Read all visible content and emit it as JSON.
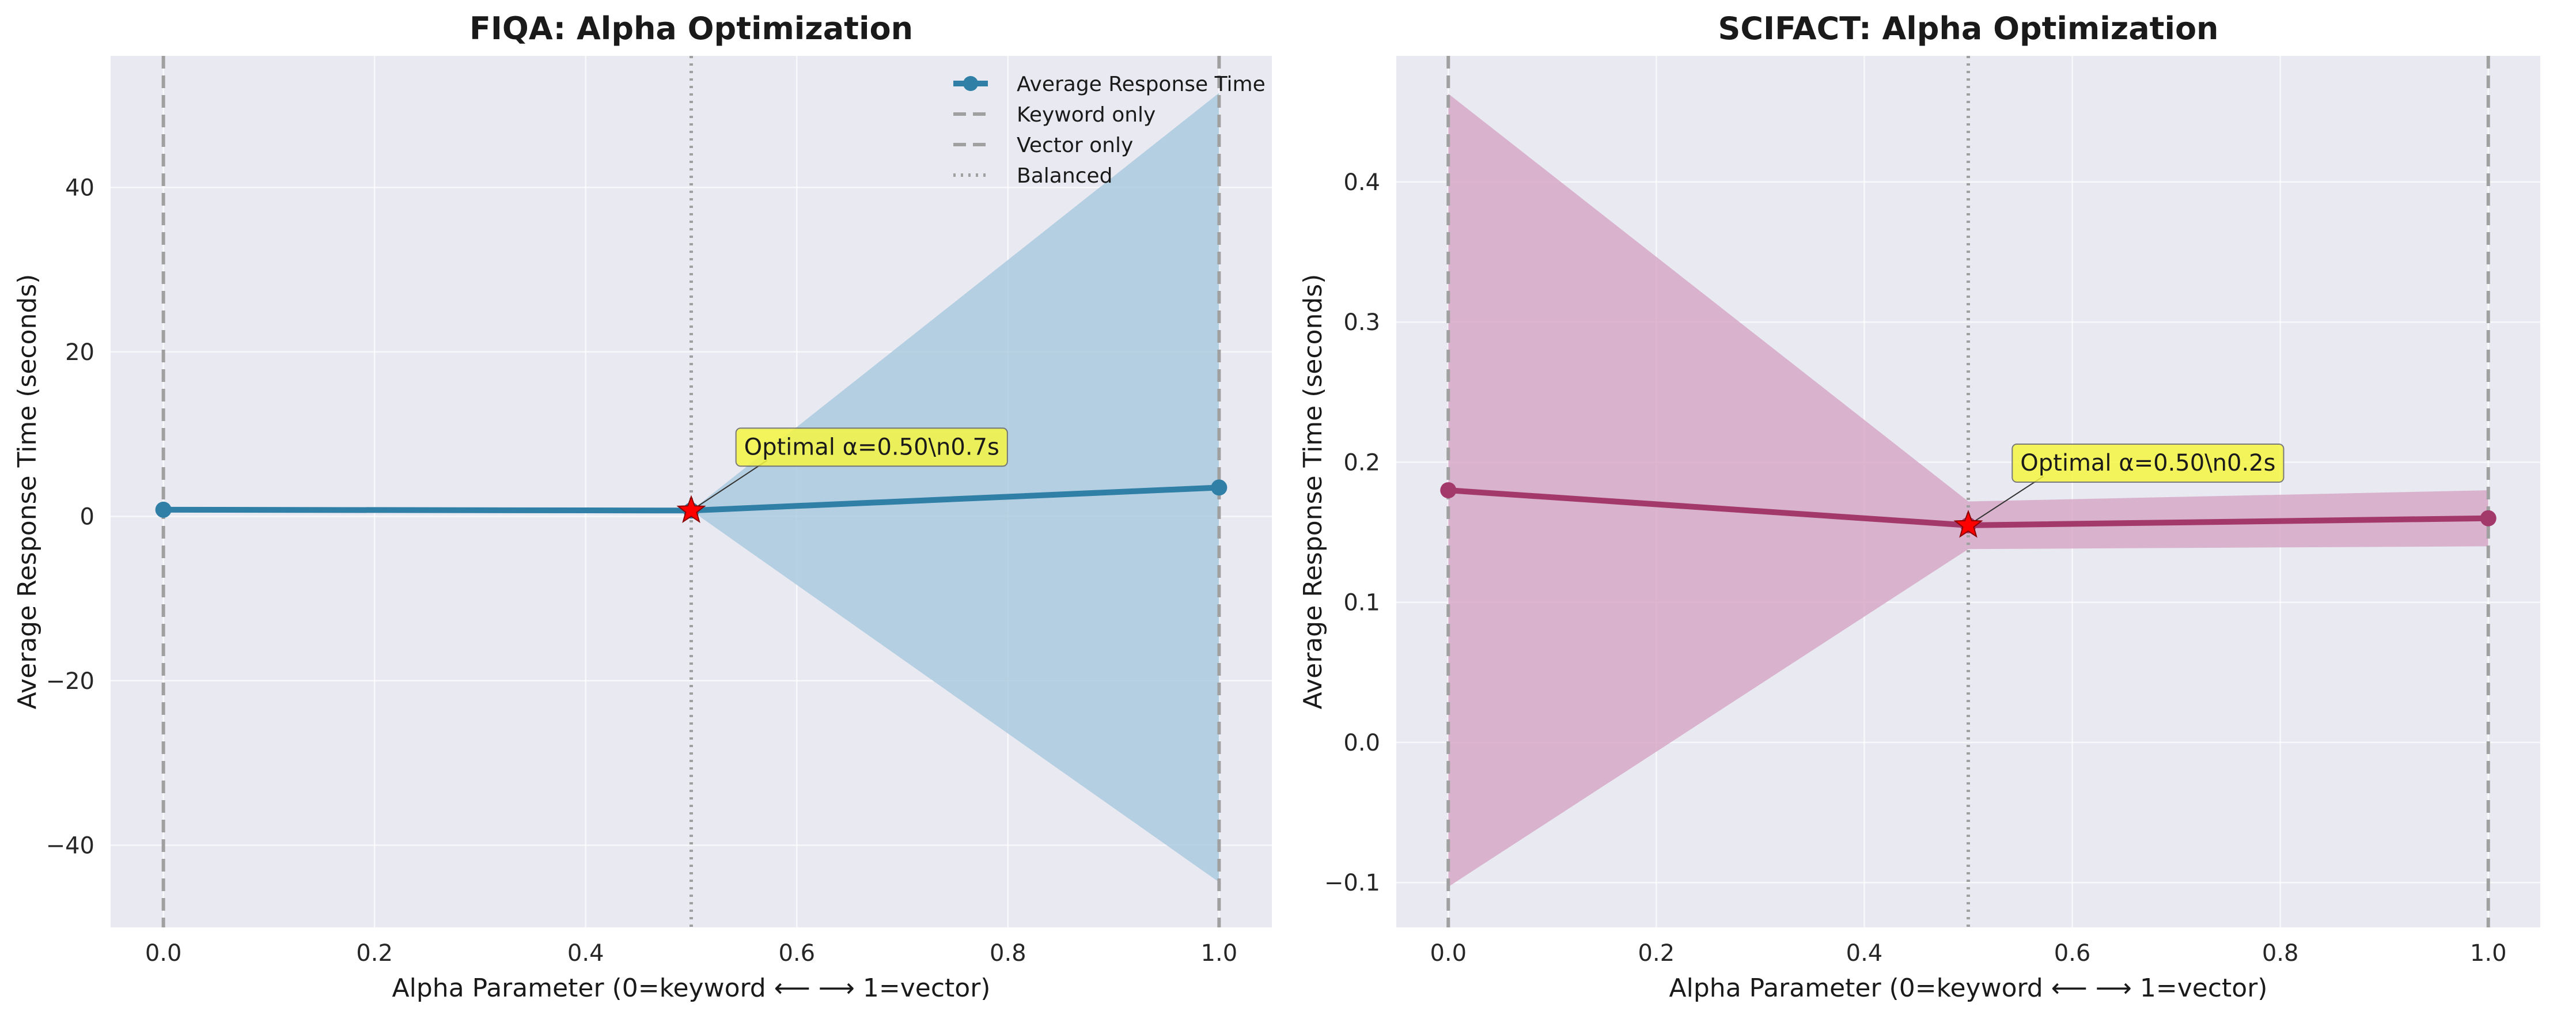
{
  "chart_data": [
    {
      "type": "line",
      "title": "FIQA: Alpha Optimization",
      "xlabel": "Alpha Parameter (0=keyword ⟵ ⟶ 1=vector)",
      "ylabel": "Average Response Time (seconds)",
      "xlim": [
        -0.05,
        1.05
      ],
      "ylim": [
        -50,
        56
      ],
      "xticks": [
        0.0,
        0.2,
        0.4,
        0.6,
        0.8,
        1.0
      ],
      "xtick_labels": [
        "0.0",
        "0.2",
        "0.4",
        "0.6",
        "0.8",
        "1.0"
      ],
      "yticks": [
        -40,
        -20,
        0,
        20,
        40
      ],
      "ytick_labels": [
        "−40",
        "−20",
        "0",
        "20",
        "40"
      ],
      "grid": true,
      "legend_position": "top-right",
      "colors": {
        "line": "#2f7fa6",
        "band": "#a7c8dd",
        "optimal_marker": "#ff0000",
        "reference_line": "#a0a0a0",
        "annotation_box": "#f5f542"
      },
      "series": [
        {
          "name": "Average Response Time",
          "x": [
            0.0,
            0.5,
            1.0
          ],
          "values": [
            0.8,
            0.7,
            3.5
          ],
          "lower": [
            0.8,
            0.7,
            -44.5
          ],
          "upper": [
            0.8,
            0.7,
            51.5
          ]
        }
      ],
      "reference_lines": [
        {
          "name": "Keyword only",
          "x": 0.0,
          "style": "dashed"
        },
        {
          "name": "Vector only",
          "x": 1.0,
          "style": "dashed"
        },
        {
          "name": "Balanced",
          "x": 0.5,
          "style": "dotted"
        }
      ],
      "optimal": {
        "x": 0.5,
        "y": 0.7
      },
      "annotation": {
        "text": "Optimal α=0.50\\n0.7s",
        "x": 0.55,
        "y": 7.5
      },
      "legend": [
        "Average Response Time",
        "Keyword only",
        "Vector only",
        "Balanced"
      ]
    },
    {
      "type": "line",
      "title": "SCIFACT: Alpha Optimization",
      "xlabel": "Alpha Parameter (0=keyword ⟵ ⟶ 1=vector)",
      "ylabel": "Average Response Time (seconds)",
      "xlim": [
        -0.05,
        1.05
      ],
      "ylim": [
        -0.132,
        0.49
      ],
      "xticks": [
        0.0,
        0.2,
        0.4,
        0.6,
        0.8,
        1.0
      ],
      "xtick_labels": [
        "0.0",
        "0.2",
        "0.4",
        "0.6",
        "0.8",
        "1.0"
      ],
      "yticks": [
        -0.1,
        0.0,
        0.1,
        0.2,
        0.3,
        0.4
      ],
      "ytick_labels": [
        "−0.1",
        "0.0",
        "0.1",
        "0.2",
        "0.3",
        "0.4"
      ],
      "grid": true,
      "legend_position": "none",
      "colors": {
        "line": "#a3396b",
        "band": "#d4a4c3",
        "optimal_marker": "#ff0000",
        "reference_line": "#a0a0a0",
        "annotation_box": "#f5f542"
      },
      "series": [
        {
          "name": "Average Response Time",
          "x": [
            0.0,
            0.5,
            1.0
          ],
          "values": [
            0.18,
            0.155,
            0.16
          ],
          "lower": [
            -0.103,
            0.138,
            0.14
          ],
          "upper": [
            0.463,
            0.172,
            0.18
          ]
        }
      ],
      "reference_lines": [
        {
          "name": "Keyword only",
          "x": 0.0,
          "style": "dashed"
        },
        {
          "name": "Vector only",
          "x": 1.0,
          "style": "dashed"
        },
        {
          "name": "Balanced",
          "x": 0.5,
          "style": "dotted"
        }
      ],
      "optimal": {
        "x": 0.5,
        "y": 0.155
      },
      "annotation": {
        "text": "Optimal α=0.50\\n0.2s",
        "x": 0.55,
        "y": 0.194
      },
      "legend": []
    }
  ]
}
